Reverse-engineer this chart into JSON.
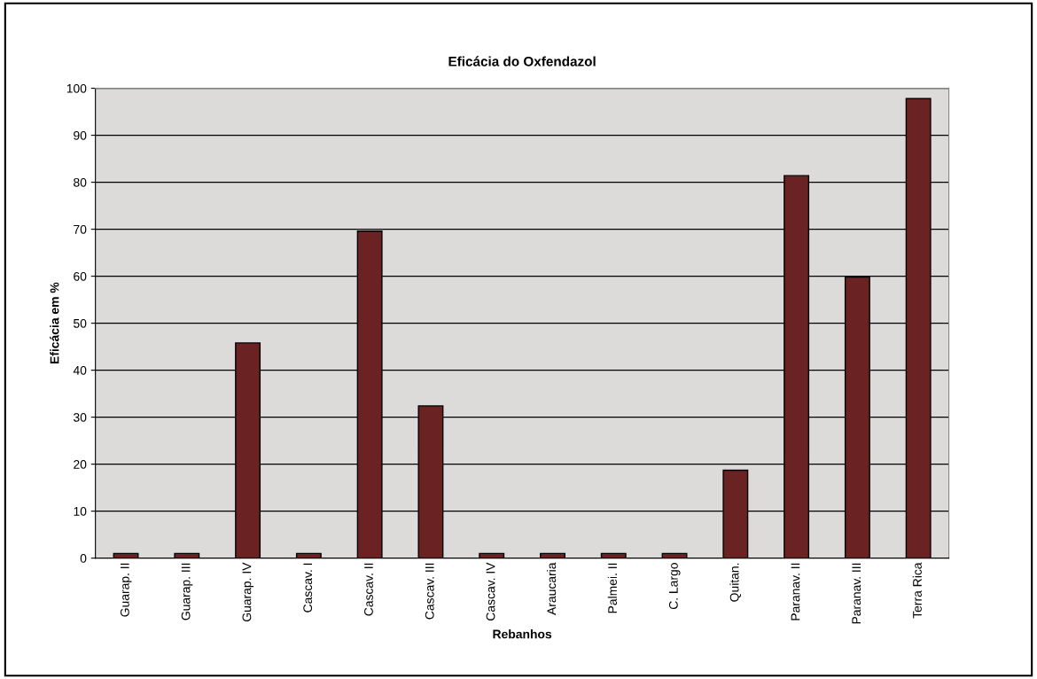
{
  "chart_data": {
    "type": "bar",
    "title": "Eficácia do Oxfendazol",
    "xlabel": "Rebanhos",
    "ylabel": "Eficácia em %",
    "categories": [
      "Guarap. II",
      "Guarap. III",
      "Guarap. IV",
      "Cascav. I",
      "Cascav. II",
      "Cascav. III",
      "Cascav. IV",
      "Araucaria",
      "Palmei. II",
      "C. Largo",
      "Quitan.",
      "Paranav. II",
      "Paranav. III",
      "Terra Rica"
    ],
    "values": [
      1,
      1,
      45.8,
      1,
      69.6,
      32.4,
      1,
      1,
      1,
      1,
      18.7,
      81.4,
      59.8,
      97.8
    ],
    "color": "#6b2222",
    "ylim": [
      0,
      100
    ],
    "yticks": [
      0,
      10,
      20,
      30,
      40,
      50,
      60,
      70,
      80,
      90,
      100
    ],
    "grid": "y"
  }
}
